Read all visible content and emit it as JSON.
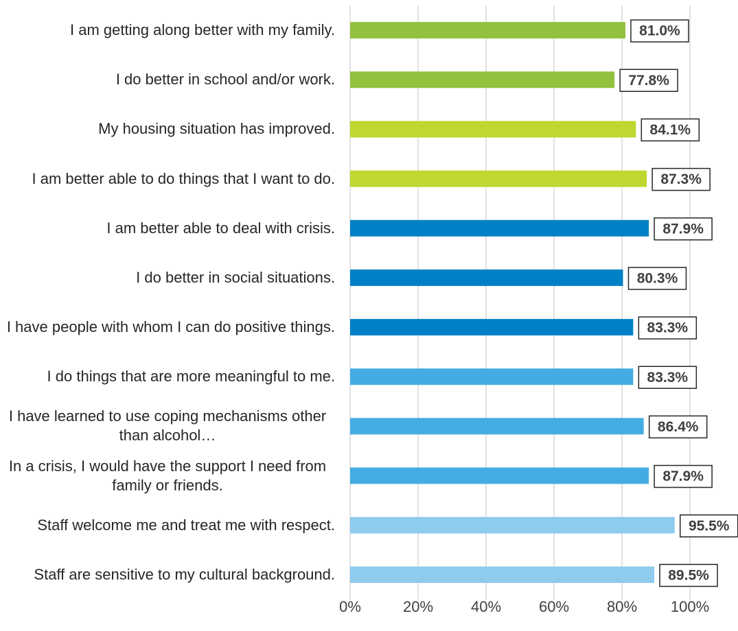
{
  "chart_data": {
    "type": "barh",
    "categories": [
      "I am getting along better with my family.",
      "I do better in school and/or work.",
      "My housing situation has improved.",
      "I am better able to do things that I want to do.",
      "I am better able to deal with crisis.",
      "I do better in social situations.",
      "I have people with whom I can do positive things.",
      "I do things that are more meaningful to me.",
      "I have learned to use coping mechanisms other than alcohol…",
      "In a crisis, I would have the support I need from family or friends.",
      "Staff welcome me and treat me with respect.",
      "Staff are sensitive to my cultural background."
    ],
    "values": [
      81.0,
      77.8,
      84.1,
      87.3,
      87.9,
      80.3,
      83.3,
      83.3,
      86.4,
      87.9,
      95.5,
      89.5
    ],
    "value_labels": [
      "81.0%",
      "77.8%",
      "84.1%",
      "87.3%",
      "87.9%",
      "80.3%",
      "83.3%",
      "83.3%",
      "86.4%",
      "87.9%",
      "95.5%",
      "89.5%"
    ],
    "colors": [
      "#92c13e",
      "#92c13e",
      "#bfd730",
      "#bfd730",
      "#0080c6",
      "#0080c6",
      "#0080c6",
      "#43ade2",
      "#43ade2",
      "#43ade2",
      "#8ecbed",
      "#8ecbed"
    ],
    "xlim": [
      0,
      100
    ],
    "xticks": [
      {
        "value": 0,
        "label": "0%"
      },
      {
        "value": 20,
        "label": "20%"
      },
      {
        "value": 40,
        "label": "40%"
      },
      {
        "value": 60,
        "label": "60%"
      },
      {
        "value": 80,
        "label": "80%"
      },
      {
        "value": 100,
        "label": "100%"
      }
    ],
    "grid": true
  }
}
